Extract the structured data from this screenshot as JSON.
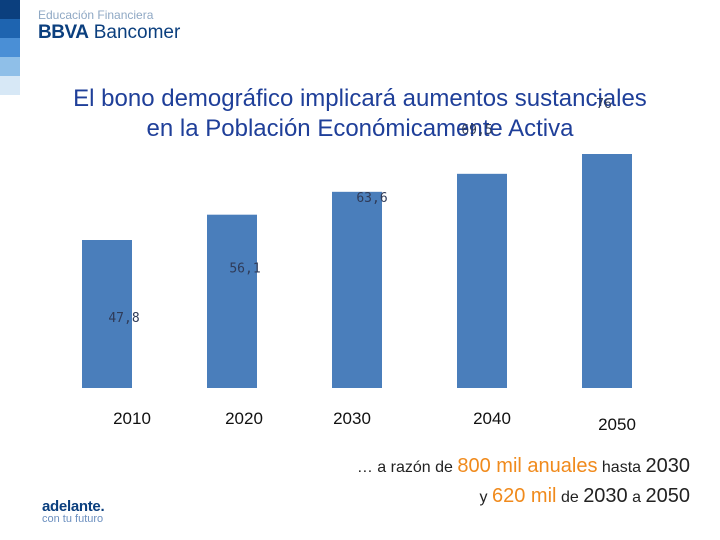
{
  "header": {
    "brand_top": "Educación Financiera",
    "brand_bold": "BBVA",
    "brand_rest": "Bancomer",
    "strip_colors": [
      "#0b3f7e",
      "#1e64b0",
      "#4a8fd6",
      "#8fbfe8",
      "#d7e8f6"
    ]
  },
  "slide": {
    "title_line1": "El bono demográfico implicará aumentos sustanciales",
    "title_line2": "en la Población Económicamente Activa"
  },
  "caption": {
    "prefix": "… a razón de",
    "amount1": "800 mil anuales",
    "hasta": "hasta",
    "year1": "2030",
    "y": "y",
    "amount2": "620 mil",
    "de": "de",
    "year_from": "2030",
    "a": "a",
    "year_to": "2050"
  },
  "footer": {
    "logo_main": "adelante.",
    "logo_sub": "con tu futuro"
  },
  "chart_data": {
    "type": "bar",
    "title": "",
    "categories": [
      "2010",
      "2020",
      "2030",
      "2040",
      "2050"
    ],
    "values": [
      47.8,
      56.1,
      63.6,
      69.5,
      76
    ],
    "value_labels": [
      "47,8",
      "56,1",
      "63,6",
      "69,5",
      "76"
    ],
    "ylim": [
      0,
      76
    ],
    "xlabel": "",
    "ylabel": "",
    "bar_color": "#4a7ebb"
  }
}
